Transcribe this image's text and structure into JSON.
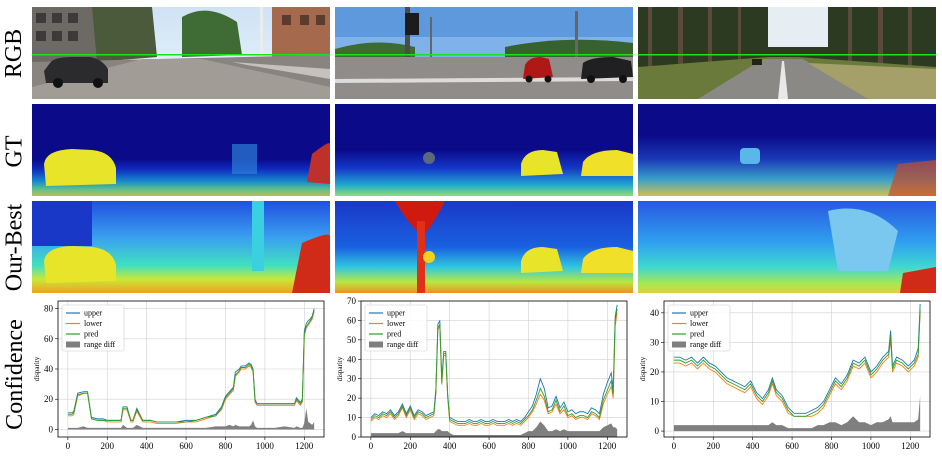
{
  "figure": {
    "row_labels": [
      "RGB",
      "GT",
      "Our-Best",
      "Confidence"
    ],
    "colors": {
      "upper": "#1f77b4",
      "lower": "#ff7f0e",
      "pred": "#2ca02c",
      "range_diff": "#7f7f7f",
      "jet_low": "#0b0b8a",
      "horizon_line": "#22dd22"
    },
    "scenes": [
      {
        "rgb": "urban street with parked cars and buildings",
        "gt": "sparse depth with car",
        "pred": "dense depth with car"
      },
      {
        "rgb": "intersection with traffic light and red car",
        "gt": "sparse depth with two cars",
        "pred": "dense depth with pole and cars"
      },
      {
        "rgb": "forest road with trees",
        "gt": "sparse depth forest",
        "pred": "dense depth forest"
      }
    ]
  },
  "chart_data": [
    {
      "type": "line",
      "xlabel": "",
      "ylabel": "disparity",
      "xlim": [
        -50,
        1300
      ],
      "ylim": [
        -5,
        85
      ],
      "xticks": [
        0,
        200,
        400,
        600,
        800,
        1000,
        1200
      ],
      "yticks": [
        0,
        20,
        40,
        60,
        80
      ],
      "legend": [
        "upper",
        "lower",
        "pred",
        "range diff"
      ],
      "legend_position": "top-left",
      "grid": true,
      "x": [
        0,
        20,
        30,
        50,
        80,
        100,
        120,
        150,
        180,
        200,
        250,
        270,
        280,
        300,
        320,
        330,
        350,
        380,
        400,
        420,
        450,
        500,
        550,
        600,
        650,
        700,
        750,
        780,
        800,
        820,
        840,
        850,
        870,
        880,
        900,
        920,
        930,
        940,
        950,
        960,
        1000,
        1050,
        1100,
        1150,
        1160,
        1180,
        1190,
        1200,
        1210,
        1220,
        1230,
        1240,
        1250
      ],
      "series": [
        {
          "name": "upper",
          "values": [
            11,
            11,
            12,
            24,
            25,
            25,
            8,
            7,
            7,
            6,
            6,
            6,
            15,
            15,
            6,
            6,
            14,
            6,
            6,
            6,
            5,
            5,
            5,
            6,
            6,
            8,
            10,
            15,
            22,
            25,
            28,
            38,
            40,
            42,
            42,
            44,
            43,
            40,
            20,
            17,
            17,
            17,
            17,
            17,
            21,
            18,
            20,
            65,
            70,
            72,
            73,
            75,
            80
          ]
        },
        {
          "name": "lower",
          "values": [
            9,
            9,
            10,
            22,
            24,
            24,
            7,
            6,
            6,
            5,
            5,
            5,
            13,
            13,
            5,
            5,
            12,
            5,
            5,
            5,
            4,
            4,
            4,
            5,
            5,
            7,
            9,
            13,
            20,
            23,
            26,
            35,
            38,
            40,
            40,
            42,
            41,
            38,
            18,
            16,
            16,
            16,
            16,
            16,
            19,
            16,
            18,
            62,
            67,
            69,
            71,
            73,
            78
          ]
        },
        {
          "name": "pred",
          "values": [
            10,
            10,
            11,
            23,
            24,
            24,
            7,
            6,
            6,
            6,
            6,
            6,
            14,
            14,
            6,
            6,
            13,
            6,
            6,
            6,
            5,
            5,
            5,
            5,
            6,
            8,
            9,
            14,
            21,
            24,
            27,
            36,
            39,
            41,
            41,
            43,
            42,
            39,
            19,
            17,
            17,
            17,
            17,
            17,
            20,
            17,
            19,
            63,
            68,
            70,
            72,
            74,
            79
          ]
        },
        {
          "name": "range diff",
          "values": [
            1,
            1,
            1,
            1,
            2,
            1,
            1,
            1,
            1,
            1,
            1,
            1,
            3,
            1,
            1,
            1,
            3,
            1,
            1,
            1,
            1,
            1,
            1,
            1,
            1,
            1,
            2,
            2,
            2,
            3,
            2,
            3,
            2,
            2,
            2,
            2,
            3,
            6,
            2,
            1,
            1,
            1,
            2,
            1,
            2,
            1,
            1,
            4,
            14,
            5,
            4,
            3,
            5
          ]
        }
      ]
    },
    {
      "type": "line",
      "xlabel": "",
      "ylabel": "disparity",
      "xlim": [
        -50,
        1300
      ],
      "ylim": [
        0,
        70
      ],
      "xticks": [
        0,
        200,
        400,
        600,
        800,
        1000,
        1200
      ],
      "yticks": [
        0,
        10,
        20,
        30,
        40,
        50,
        60,
        70
      ],
      "legend": [
        "upper",
        "lower",
        "pred",
        "range diff"
      ],
      "legend_position": "top-left",
      "grid": true,
      "x": [
        0,
        20,
        40,
        60,
        80,
        100,
        120,
        140,
        160,
        180,
        200,
        220,
        240,
        260,
        280,
        300,
        320,
        330,
        340,
        350,
        360,
        370,
        380,
        390,
        400,
        420,
        440,
        460,
        480,
        500,
        520,
        540,
        560,
        580,
        600,
        620,
        640,
        660,
        680,
        700,
        720,
        740,
        760,
        780,
        800,
        820,
        840,
        860,
        880,
        900,
        920,
        940,
        960,
        980,
        1000,
        1020,
        1040,
        1060,
        1080,
        1100,
        1120,
        1140,
        1160,
        1180,
        1200,
        1220,
        1230,
        1240,
        1250
      ],
      "series": [
        {
          "name": "upper",
          "values": [
            10,
            12,
            11,
            13,
            12,
            14,
            11,
            13,
            17,
            12,
            16,
            11,
            14,
            13,
            11,
            12,
            13,
            25,
            58,
            60,
            30,
            44,
            44,
            22,
            10,
            9,
            8,
            8,
            8,
            9,
            8,
            8,
            9,
            8,
            8,
            9,
            8,
            8,
            8,
            9,
            8,
            9,
            8,
            10,
            13,
            16,
            22,
            30,
            25,
            15,
            16,
            21,
            15,
            18,
            13,
            14,
            12,
            13,
            13,
            12,
            15,
            14,
            12,
            22,
            28,
            33,
            25,
            62,
            68
          ]
        },
        {
          "name": "lower",
          "values": [
            8,
            10,
            9,
            11,
            10,
            12,
            9,
            11,
            15,
            10,
            14,
            9,
            12,
            11,
            9,
            10,
            11,
            22,
            55,
            57,
            27,
            42,
            42,
            20,
            8,
            7,
            6,
            6,
            6,
            7,
            6,
            6,
            7,
            6,
            6,
            7,
            6,
            6,
            6,
            7,
            6,
            7,
            6,
            8,
            10,
            13,
            17,
            22,
            19,
            12,
            13,
            17,
            12,
            14,
            10,
            11,
            9,
            10,
            10,
            9,
            12,
            11,
            9,
            17,
            22,
            26,
            20,
            57,
            64
          ]
        },
        {
          "name": "pred",
          "values": [
            9,
            11,
            10,
            12,
            11,
            13,
            10,
            12,
            16,
            11,
            15,
            10,
            13,
            12,
            10,
            11,
            12,
            23,
            56,
            58,
            28,
            43,
            43,
            21,
            9,
            8,
            7,
            7,
            7,
            8,
            7,
            7,
            8,
            7,
            7,
            8,
            7,
            7,
            7,
            8,
            7,
            8,
            7,
            9,
            11,
            14,
            19,
            25,
            21,
            13,
            14,
            19,
            13,
            16,
            11,
            12,
            10,
            11,
            11,
            10,
            13,
            12,
            10,
            19,
            24,
            29,
            22,
            60,
            66
          ]
        },
        {
          "name": "range diff",
          "values": [
            2,
            2,
            2,
            2,
            2,
            2,
            2,
            2,
            3,
            2,
            2,
            2,
            2,
            2,
            2,
            2,
            2,
            3,
            4,
            4,
            3,
            3,
            3,
            3,
            2,
            1,
            1,
            1,
            1,
            1,
            1,
            1,
            1,
            1,
            1,
            1,
            1,
            1,
            1,
            1,
            1,
            1,
            1,
            2,
            3,
            3,
            5,
            8,
            6,
            3,
            3,
            4,
            3,
            4,
            3,
            3,
            3,
            3,
            3,
            3,
            3,
            3,
            3,
            5,
            6,
            7,
            5,
            5,
            4
          ]
        }
      ]
    },
    {
      "type": "line",
      "xlabel": "",
      "ylabel": "disparity",
      "xlim": [
        -50,
        1300
      ],
      "ylim": [
        -2,
        44
      ],
      "xticks": [
        0,
        200,
        400,
        600,
        800,
        1000,
        1200
      ],
      "yticks": [
        0,
        10,
        20,
        30,
        40
      ],
      "legend": [
        "upper",
        "lower",
        "pred",
        "range diff"
      ],
      "legend_position": "top-left",
      "grid": true,
      "x": [
        0,
        30,
        60,
        90,
        120,
        150,
        180,
        210,
        240,
        270,
        300,
        330,
        360,
        390,
        420,
        450,
        480,
        500,
        520,
        550,
        580,
        610,
        640,
        670,
        700,
        730,
        760,
        790,
        820,
        850,
        880,
        910,
        940,
        970,
        1000,
        1030,
        1060,
        1090,
        1100,
        1110,
        1130,
        1160,
        1190,
        1220,
        1240,
        1250
      ],
      "series": [
        {
          "name": "upper",
          "values": [
            25,
            25,
            24,
            25,
            23,
            25,
            23,
            22,
            20,
            18,
            17,
            16,
            15,
            17,
            13,
            11,
            14,
            18,
            14,
            12,
            8,
            6,
            6,
            6,
            7,
            8,
            10,
            14,
            18,
            16,
            19,
            24,
            23,
            25,
            20,
            22,
            25,
            27,
            34,
            22,
            25,
            24,
            22,
            24,
            28,
            43
          ]
        },
        {
          "name": "lower",
          "values": [
            23,
            23,
            22,
            23,
            21,
            23,
            21,
            20,
            18,
            16,
            15,
            14,
            13,
            15,
            11,
            9,
            12,
            16,
            12,
            10,
            6,
            5,
            5,
            5,
            5,
            6,
            8,
            12,
            16,
            14,
            17,
            22,
            21,
            23,
            18,
            20,
            23,
            25,
            31,
            20,
            23,
            22,
            20,
            22,
            25,
            40
          ]
        },
        {
          "name": "pred",
          "values": [
            24,
            24,
            23,
            24,
            22,
            24,
            22,
            21,
            19,
            17,
            16,
            15,
            14,
            16,
            12,
            10,
            13,
            17,
            13,
            11,
            7,
            5,
            5,
            5,
            6,
            7,
            9,
            13,
            17,
            15,
            18,
            23,
            22,
            24,
            19,
            21,
            24,
            26,
            32,
            21,
            24,
            23,
            21,
            23,
            26,
            41
          ]
        },
        {
          "name": "range diff",
          "values": [
            2,
            2,
            2,
            2,
            2,
            2,
            2,
            2,
            2,
            2,
            2,
            2,
            2,
            2,
            2,
            2,
            2,
            3,
            2,
            2,
            1,
            1,
            1,
            1,
            1,
            2,
            2,
            3,
            3,
            2,
            3,
            5,
            3,
            3,
            2,
            3,
            3,
            4,
            5,
            3,
            3,
            3,
            3,
            3,
            4,
            12
          ]
        }
      ]
    }
  ]
}
